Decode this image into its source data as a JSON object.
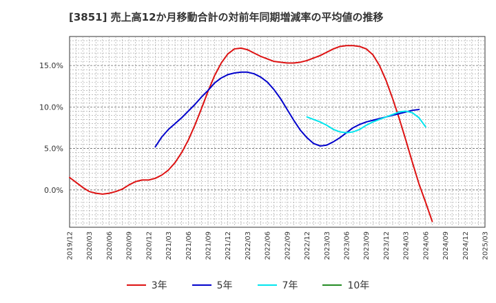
{
  "chart_data": {
    "type": "line",
    "title": "[3851]  売上高12か月移動合計の対前年同期増減率の平均値の推移",
    "xlabel": "",
    "ylabel": "",
    "ylim": [
      -4.5,
      18.5
    ],
    "y_ticks": [
      "0.0%",
      "5.0%",
      "10.0%",
      "15.0%"
    ],
    "y_tick_values": [
      0,
      5,
      10,
      15
    ],
    "x_ticks": [
      "2019/12",
      "2020/03",
      "2020/06",
      "2020/09",
      "2020/12",
      "2021/03",
      "2021/06",
      "2021/09",
      "2021/12",
      "2022/03",
      "2022/06",
      "2022/09",
      "2022/12",
      "2023/03",
      "2023/06",
      "2023/09",
      "2023/12",
      "2024/03",
      "2024/06",
      "2024/09",
      "2024/12",
      "2025/03"
    ],
    "grid": true,
    "legend_position": "bottom",
    "series": [
      {
        "name": "3年",
        "color": "#dd1111",
        "start_index": 0,
        "values": [
          1.5,
          0.9,
          0.3,
          -0.2,
          -0.4,
          -0.5,
          -0.4,
          -0.2,
          0.1,
          0.6,
          1.0,
          1.2,
          1.2,
          1.4,
          1.8,
          2.4,
          3.3,
          4.5,
          6.0,
          7.8,
          9.8,
          11.9,
          13.8,
          15.3,
          16.4,
          17.0,
          17.1,
          16.9,
          16.5,
          16.1,
          15.8,
          15.5,
          15.4,
          15.3,
          15.3,
          15.4,
          15.6,
          15.9,
          16.2,
          16.6,
          17.0,
          17.3,
          17.4,
          17.4,
          17.3,
          17.0,
          16.3,
          15.0,
          13.2,
          11.0,
          8.6,
          6.0,
          3.3,
          0.7,
          -1.5,
          -3.8
        ]
      },
      {
        "name": "5年",
        "color": "#0000cc",
        "start_index": 13,
        "values": [
          5.2,
          6.4,
          7.3,
          8.0,
          8.7,
          9.5,
          10.3,
          11.2,
          12.0,
          12.9,
          13.5,
          13.9,
          14.1,
          14.2,
          14.2,
          14.0,
          13.6,
          13.0,
          12.1,
          11.0,
          9.7,
          8.4,
          7.2,
          6.3,
          5.6,
          5.3,
          5.4,
          5.8,
          6.3,
          6.9,
          7.5,
          7.9,
          8.2,
          8.4,
          8.6,
          8.8,
          9.0,
          9.2,
          9.4,
          9.6,
          9.7
        ]
      },
      {
        "name": "7年",
        "color": "#00e5ee",
        "start_index": 36,
        "values": [
          8.8,
          8.5,
          8.2,
          7.8,
          7.3,
          7.0,
          6.9,
          7.0,
          7.3,
          7.8,
          8.2,
          8.5,
          8.8,
          9.1,
          9.4,
          9.5,
          9.3,
          8.7,
          7.6
        ]
      },
      {
        "name": "10年",
        "color": "#228b22",
        "start_index": 0,
        "values": []
      }
    ]
  }
}
